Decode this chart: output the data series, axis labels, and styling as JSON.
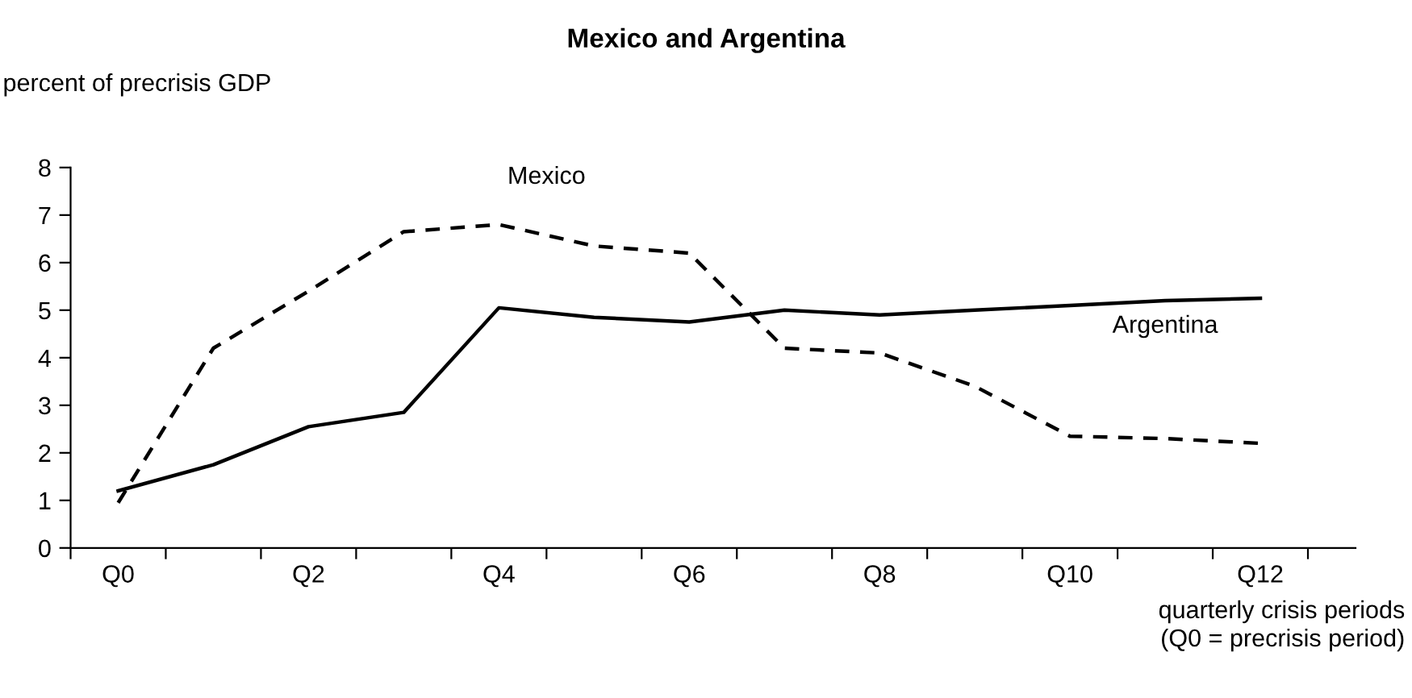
{
  "chart_data": {
    "type": "line",
    "title": "Mexico and Argentina",
    "ylabel": "percent of precrisis GDP",
    "xlabel": "quarterly crisis periods\n(Q0 = precrisis period)",
    "categories": [
      "Q0",
      null,
      "Q2",
      null,
      "Q4",
      null,
      "Q6",
      null,
      "Q8",
      null,
      "Q10",
      null,
      "Q12"
    ],
    "series": [
      {
        "name": "Mexico",
        "color": "#000000",
        "line_style": "dashed",
        "values": [
          0.95,
          4.2,
          5.4,
          6.65,
          6.8,
          6.35,
          6.2,
          4.2,
          4.1,
          3.4,
          2.35,
          2.3,
          2.2
        ]
      },
      {
        "name": "Argentina",
        "color": "#000000",
        "line_style": "solid",
        "values": [
          1.2,
          1.75,
          2.55,
          2.85,
          5.05,
          4.85,
          4.75,
          5.0,
          4.9,
          5.0,
          5.1,
          5.2,
          5.25
        ]
      }
    ],
    "ylim": [
      0,
      8
    ],
    "yticks": [
      0,
      1,
      2,
      3,
      4,
      5,
      6,
      7,
      8
    ],
    "grid": false,
    "legend": false,
    "marker": "none"
  }
}
